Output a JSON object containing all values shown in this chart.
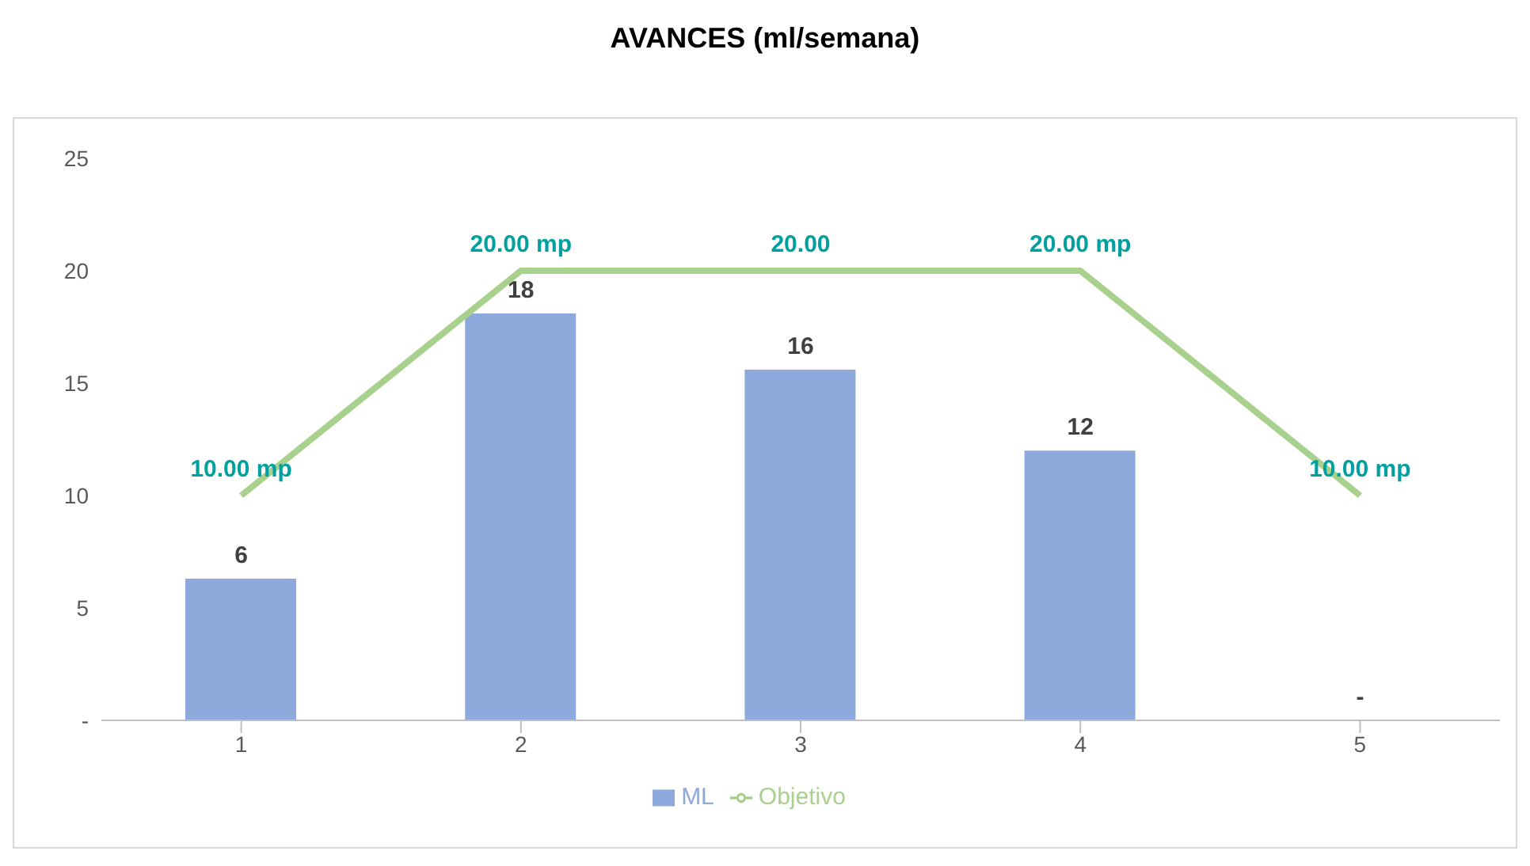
{
  "chart_data": {
    "type": "bar",
    "title": "AVANCES (ml/semana)",
    "categories": [
      "1",
      "2",
      "3",
      "4",
      "5"
    ],
    "series": [
      {
        "name": "ML",
        "color": "#8eaadc",
        "values": [
          6.3,
          18.1,
          15.6,
          12,
          0
        ],
        "value_labels": [
          "6",
          "18",
          "16",
          "12",
          "-"
        ]
      },
      {
        "name": "Objetivo",
        "type": "line",
        "color": "#a9d18e",
        "values": [
          10,
          20,
          20,
          20,
          10
        ],
        "value_labels": [
          "10.00  mp",
          "20.00  mp",
          "20.00",
          "20.00  mp",
          "10.00  mp"
        ],
        "marker": "none"
      }
    ],
    "ylim": [
      0,
      25
    ],
    "yticks": [
      {
        "value": 0,
        "label": "-"
      },
      5,
      10,
      15,
      20,
      25
    ],
    "grid": false,
    "legend": "bottom"
  }
}
